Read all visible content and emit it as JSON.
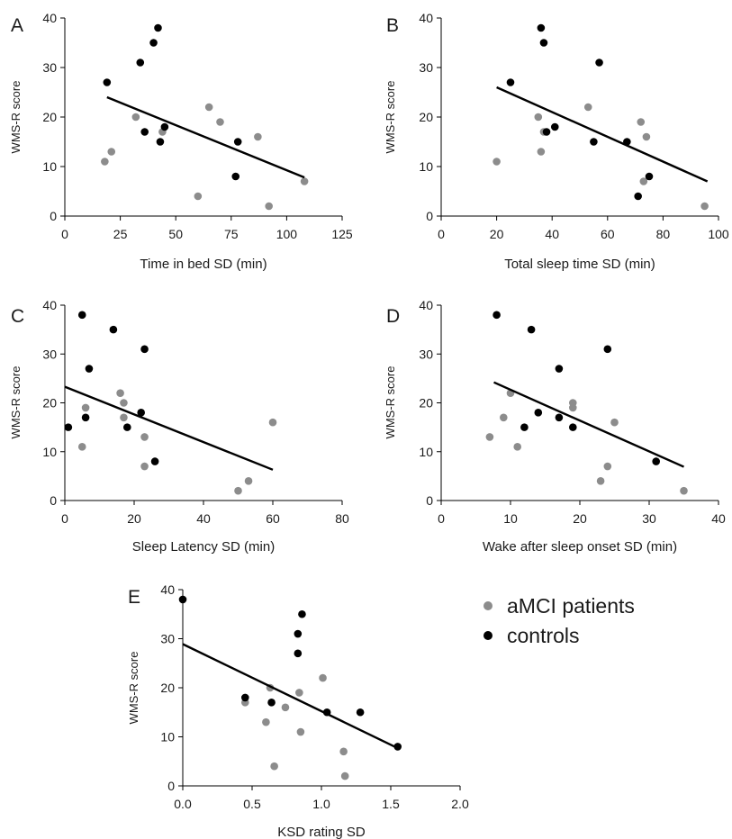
{
  "colors": {
    "patients": "#8c8c8c",
    "controls": "#000000",
    "line": "#000000",
    "axis": "#000000"
  },
  "legend": {
    "items": [
      {
        "label": "aMCI patients",
        "series": "patients"
      },
      {
        "label": "controls",
        "series": "controls"
      }
    ]
  },
  "chart_data": [
    {
      "panel": "A",
      "type": "scatter",
      "xlabel": "Time in bed SD (min)",
      "ylabel": "WMS-R score",
      "xlim": [
        0,
        125
      ],
      "ylim": [
        0,
        40
      ],
      "xticks": [
        0,
        25,
        50,
        75,
        100,
        125
      ],
      "yticks": [
        0,
        10,
        20,
        30,
        40
      ],
      "series": [
        {
          "group": "patients",
          "points": [
            [
              18,
              11
            ],
            [
              21,
              13
            ],
            [
              32,
              20
            ],
            [
              44,
              17
            ],
            [
              60,
              4
            ],
            [
              65,
              22
            ],
            [
              70,
              19
            ],
            [
              87,
              16
            ],
            [
              92,
              2
            ],
            [
              108,
              7
            ]
          ]
        },
        {
          "group": "controls",
          "points": [
            [
              19,
              27
            ],
            [
              34,
              31
            ],
            [
              36,
              17
            ],
            [
              40,
              35
            ],
            [
              42,
              38
            ],
            [
              43,
              15
            ],
            [
              45,
              18
            ],
            [
              77,
              8
            ],
            [
              78,
              15
            ]
          ]
        }
      ],
      "trendline": [
        [
          19,
          24
        ],
        [
          108,
          7.8
        ]
      ]
    },
    {
      "panel": "B",
      "type": "scatter",
      "xlabel": "Total sleep time SD (min)",
      "ylabel": "WMS-R score",
      "xlim": [
        0,
        100
      ],
      "ylim": [
        0,
        40
      ],
      "xticks": [
        0,
        20,
        40,
        60,
        80,
        100
      ],
      "yticks": [
        0,
        10,
        20,
        30,
        40
      ],
      "series": [
        {
          "group": "patients",
          "points": [
            [
              20,
              11
            ],
            [
              35,
              20
            ],
            [
              36,
              13
            ],
            [
              37,
              17
            ],
            [
              53,
              22
            ],
            [
              72,
              19
            ],
            [
              73,
              7
            ],
            [
              74,
              16
            ],
            [
              95,
              2
            ]
          ]
        },
        {
          "group": "controls",
          "points": [
            [
              25,
              27
            ],
            [
              36,
              38
            ],
            [
              37,
              35
            ],
            [
              38,
              17
            ],
            [
              41,
              18
            ],
            [
              55,
              15
            ],
            [
              57,
              31
            ],
            [
              67,
              15
            ],
            [
              71,
              4
            ],
            [
              75,
              8
            ]
          ]
        }
      ],
      "trendline": [
        [
          20,
          26
        ],
        [
          96,
          7
        ]
      ]
    },
    {
      "panel": "C",
      "type": "scatter",
      "xlabel": "Sleep Latency SD (min)",
      "ylabel": "WMS-R score",
      "xlim": [
        0,
        80
      ],
      "ylim": [
        0,
        40
      ],
      "xticks": [
        0,
        20,
        40,
        60,
        80
      ],
      "yticks": [
        0,
        10,
        20,
        30,
        40
      ],
      "series": [
        {
          "group": "patients",
          "points": [
            [
              5,
              11
            ],
            [
              6,
              19
            ],
            [
              16,
              22
            ],
            [
              17,
              20
            ],
            [
              17,
              17
            ],
            [
              23,
              13
            ],
            [
              23,
              7
            ],
            [
              50,
              2
            ],
            [
              53,
              4
            ],
            [
              60,
              16
            ]
          ]
        },
        {
          "group": "controls",
          "points": [
            [
              1,
              15
            ],
            [
              5,
              38
            ],
            [
              6,
              17
            ],
            [
              7,
              27
            ],
            [
              14,
              35
            ],
            [
              18,
              15
            ],
            [
              22,
              18
            ],
            [
              23,
              31
            ],
            [
              26,
              8
            ]
          ]
        }
      ],
      "trendline": [
        [
          0,
          23.3
        ],
        [
          60,
          6.3
        ]
      ]
    },
    {
      "panel": "D",
      "type": "scatter",
      "xlabel": "Wake after sleep onset SD (min)",
      "ylabel": "WMS-R score",
      "xlim": [
        0,
        40
      ],
      "ylim": [
        0,
        40
      ],
      "xticks": [
        0,
        10,
        20,
        30,
        40
      ],
      "yticks": [
        0,
        10,
        20,
        30,
        40
      ],
      "series": [
        {
          "group": "patients",
          "points": [
            [
              7,
              13
            ],
            [
              9,
              17
            ],
            [
              10,
              22
            ],
            [
              11,
              11
            ],
            [
              19,
              20
            ],
            [
              19,
              19
            ],
            [
              23,
              4
            ],
            [
              24,
              7
            ],
            [
              25,
              16
            ],
            [
              35,
              2
            ]
          ]
        },
        {
          "group": "controls",
          "points": [
            [
              8,
              38
            ],
            [
              12,
              15
            ],
            [
              13,
              35
            ],
            [
              14,
              18
            ],
            [
              17,
              27
            ],
            [
              17,
              17
            ],
            [
              19,
              15
            ],
            [
              24,
              31
            ],
            [
              31,
              8
            ]
          ]
        }
      ],
      "trendline": [
        [
          7.6,
          24.2
        ],
        [
          35,
          6.9
        ]
      ]
    },
    {
      "panel": "E",
      "type": "scatter",
      "xlabel": "KSD rating SD",
      "ylabel": "WMS-R score",
      "xlim": [
        0,
        2
      ],
      "ylim": [
        0,
        40
      ],
      "xticks": [
        "0.0",
        "0.5",
        "1.0",
        "1.5",
        "2.0"
      ],
      "yticks": [
        0,
        10,
        20,
        30,
        40
      ],
      "series": [
        {
          "group": "patients",
          "points": [
            [
              0.45,
              17
            ],
            [
              0.6,
              13
            ],
            [
              0.63,
              20
            ],
            [
              0.66,
              4
            ],
            [
              0.74,
              16
            ],
            [
              0.84,
              19
            ],
            [
              0.85,
              11
            ],
            [
              1.01,
              22
            ],
            [
              1.16,
              7
            ],
            [
              1.17,
              2
            ]
          ]
        },
        {
          "group": "controls",
          "points": [
            [
              0.0,
              38
            ],
            [
              0.45,
              18
            ],
            [
              0.64,
              17
            ],
            [
              0.83,
              31
            ],
            [
              0.83,
              27
            ],
            [
              0.86,
              35
            ],
            [
              1.04,
              15
            ],
            [
              1.28,
              15
            ],
            [
              1.55,
              8
            ]
          ]
        }
      ],
      "trendline": [
        [
          0.0,
          28.9
        ],
        [
          1.55,
          7.7
        ]
      ]
    }
  ]
}
